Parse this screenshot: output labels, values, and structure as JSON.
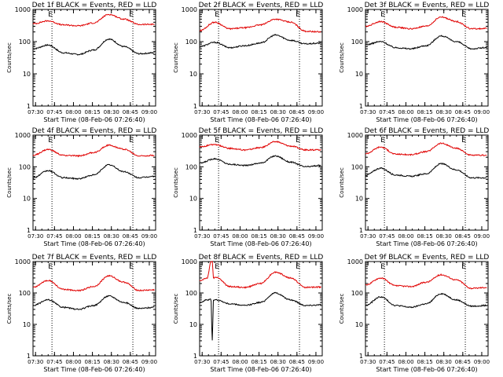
{
  "figure": {
    "ylabel": "Counts/sec",
    "xlabel": "Start Time (08-Feb-06 07:26:40)",
    "ytick_labels": [
      "1000",
      "100",
      "10",
      "1"
    ],
    "xtick_labels": [
      "07:30",
      "07:45",
      "08:00",
      "08:15",
      "08:30",
      "08:45",
      "09:00"
    ],
    "markers": [
      "E",
      "E"
    ],
    "colors": {
      "events": "#000000",
      "lld": "#e00000"
    }
  },
  "chart_data": [
    {
      "type": "line",
      "title": "Det 1f BLACK = Events, RED = LLD",
      "xlabel": "Start Time (08-Feb-06 07:26:40)",
      "ylabel": "Counts/sec",
      "xlim": [
        "07:28",
        "09:05"
      ],
      "ylim": [
        1,
        1000
      ],
      "yscale": "log",
      "dotted_lines_at": [
        "07:43",
        "08:47"
      ],
      "x": [
        "07:28",
        "07:40",
        "07:52",
        "08:04",
        "08:16",
        "08:28",
        "08:40",
        "08:52",
        "09:04"
      ],
      "series": [
        {
          "name": "BLACK = Events",
          "values": [
            60,
            78,
            45,
            40,
            55,
            120,
            70,
            42,
            45
          ]
        },
        {
          "name": "RED = LLD",
          "values": [
            360,
            440,
            330,
            310,
            380,
            700,
            500,
            340,
            345
          ]
        }
      ]
    },
    {
      "type": "line",
      "title": "Det 2f BLACK = Events, RED = LLD",
      "xlabel": "Start Time (08-Feb-06 07:26:40)",
      "ylabel": "Counts/sec",
      "xlim": [
        "07:28",
        "09:05"
      ],
      "ylim": [
        1,
        1000
      ],
      "yscale": "log",
      "dotted_lines_at": [
        "07:43",
        "08:47"
      ],
      "x": [
        "07:28",
        "07:40",
        "07:52",
        "08:04",
        "08:16",
        "08:28",
        "08:40",
        "08:52",
        "09:04"
      ],
      "series": [
        {
          "name": "BLACK = Events",
          "values": [
            70,
            95,
            65,
            75,
            90,
            160,
            110,
            85,
            90
          ]
        },
        {
          "name": "RED = LLD",
          "values": [
            220,
            400,
            250,
            270,
            330,
            500,
            400,
            210,
            200
          ]
        }
      ]
    },
    {
      "type": "line",
      "title": "Det 3f BLACK = Events, RED = LLD",
      "xlabel": "Start Time (08-Feb-06 07:26:40)",
      "ylabel": "Counts/sec",
      "xlim": [
        "07:28",
        "09:05"
      ],
      "ylim": [
        1,
        1000
      ],
      "yscale": "log",
      "dotted_lines_at": [
        "07:43",
        "08:47"
      ],
      "x": [
        "07:28",
        "07:40",
        "07:52",
        "08:04",
        "08:16",
        "08:28",
        "08:40",
        "08:52",
        "09:04"
      ],
      "series": [
        {
          "name": "BLACK = Events",
          "values": [
            80,
            100,
            65,
            60,
            75,
            150,
            100,
            60,
            65
          ]
        },
        {
          "name": "RED = LLD",
          "values": [
            300,
            420,
            280,
            250,
            300,
            580,
            420,
            250,
            255
          ]
        }
      ]
    },
    {
      "type": "line",
      "title": "Det 4f BLACK = Events, RED = LLD",
      "xlabel": "Start Time (08-Feb-06 07:26:40)",
      "ylabel": "Counts/sec",
      "xlim": [
        "07:28",
        "09:05"
      ],
      "ylim": [
        1,
        1000
      ],
      "yscale": "log",
      "dotted_lines_at": [
        "07:43",
        "08:47"
      ],
      "x": [
        "07:28",
        "07:40",
        "07:52",
        "08:04",
        "08:16",
        "08:28",
        "08:40",
        "08:52",
        "09:04"
      ],
      "series": [
        {
          "name": "BLACK = Events",
          "values": [
            45,
            75,
            45,
            42,
            55,
            115,
            70,
            45,
            50
          ]
        },
        {
          "name": "RED = LLD",
          "values": [
            230,
            350,
            230,
            220,
            280,
            480,
            360,
            220,
            230
          ]
        }
      ]
    },
    {
      "type": "line",
      "title": "Det 5f BLACK = Events, RED = LLD",
      "xlabel": "Start Time (08-Feb-06 07:26:40)",
      "ylabel": "Counts/sec",
      "xlim": [
        "07:28",
        "09:05"
      ],
      "ylim": [
        1,
        1000
      ],
      "yscale": "log",
      "dotted_lines_at": [
        "07:43",
        "08:47"
      ],
      "x": [
        "07:28",
        "07:40",
        "07:52",
        "08:04",
        "08:16",
        "08:28",
        "08:40",
        "08:52",
        "09:04"
      ],
      "series": [
        {
          "name": "BLACK = Events",
          "values": [
            130,
            180,
            120,
            110,
            130,
            220,
            140,
            100,
            110
          ]
        },
        {
          "name": "RED = LLD",
          "values": [
            430,
            500,
            380,
            340,
            400,
            620,
            450,
            340,
            345
          ]
        }
      ]
    },
    {
      "type": "line",
      "title": "Det 6f BLACK = Events, RED = LLD",
      "xlabel": "Start Time (08-Feb-06 07:26:40)",
      "ylabel": "Counts/sec",
      "xlim": [
        "07:28",
        "09:05"
      ],
      "ylim": [
        1,
        1000
      ],
      "yscale": "log",
      "dotted_lines_at": [
        "07:43",
        "08:47"
      ],
      "x": [
        "07:28",
        "07:40",
        "07:52",
        "08:04",
        "08:16",
        "08:28",
        "08:40",
        "08:52",
        "09:04"
      ],
      "series": [
        {
          "name": "BLACK = Events",
          "values": [
            55,
            90,
            55,
            50,
            60,
            125,
            80,
            45,
            45
          ]
        },
        {
          "name": "RED = LLD",
          "values": [
            260,
            420,
            250,
            240,
            300,
            550,
            380,
            230,
            230
          ]
        }
      ]
    },
    {
      "type": "line",
      "title": "Det 7f BLACK = Events, RED = LLD",
      "xlabel": "Start Time (08-Feb-06 07:26:40)",
      "ylabel": "Counts/sec",
      "xlim": [
        "07:28",
        "09:05"
      ],
      "ylim": [
        1,
        1000
      ],
      "yscale": "log",
      "dotted_lines_at": [
        "07:43",
        "08:47"
      ],
      "x": [
        "07:28",
        "07:40",
        "07:52",
        "08:04",
        "08:16",
        "08:28",
        "08:40",
        "08:52",
        "09:04"
      ],
      "series": [
        {
          "name": "BLACK = Events",
          "values": [
            40,
            60,
            35,
            30,
            40,
            80,
            50,
            32,
            35
          ]
        },
        {
          "name": "RED = LLD",
          "values": [
            150,
            250,
            130,
            120,
            160,
            350,
            220,
            120,
            125
          ]
        }
      ]
    },
    {
      "type": "line",
      "title": "Det 8f BLACK = Events, RED = LLD",
      "xlabel": "Start Time (08-Feb-06 07:26:40)",
      "ylabel": "Counts/sec",
      "xlim": [
        "07:28",
        "09:05"
      ],
      "ylim": [
        1,
        1000
      ],
      "yscale": "log",
      "dotted_lines_at": [
        "07:43",
        "08:47"
      ],
      "x": [
        "07:28",
        "07:34",
        "07:37",
        "07:38",
        "07:39",
        "07:41",
        "07:52",
        "08:04",
        "08:16",
        "08:28",
        "08:40",
        "08:52",
        "09:04"
      ],
      "series": [
        {
          "name": "BLACK = Events",
          "values": [
            50,
            60,
            65,
            3,
            60,
            60,
            45,
            40,
            50,
            100,
            60,
            40,
            42
          ]
        },
        {
          "name": "RED = LLD",
          "values": [
            250,
            300,
            1000,
            1000,
            300,
            320,
            160,
            150,
            200,
            460,
            300,
            150,
            155
          ]
        }
      ]
    },
    {
      "type": "line",
      "title": "Det 9f BLACK = Events, RED = LLD",
      "xlabel": "Start Time (08-Feb-06 07:26:40)",
      "ylabel": "Counts/sec",
      "xlim": [
        "07:28",
        "09:05"
      ],
      "ylim": [
        1,
        1000
      ],
      "yscale": "log",
      "dotted_lines_at": [
        "07:43",
        "08:47"
      ],
      "x": [
        "07:28",
        "07:40",
        "07:52",
        "08:04",
        "08:16",
        "08:28",
        "08:40",
        "08:52",
        "09:04"
      ],
      "series": [
        {
          "name": "BLACK = Events",
          "values": [
            40,
            75,
            40,
            35,
            45,
            95,
            60,
            38,
            40
          ]
        },
        {
          "name": "RED = LLD",
          "values": [
            180,
            300,
            170,
            160,
            220,
            380,
            260,
            140,
            150
          ]
        }
      ]
    }
  ]
}
